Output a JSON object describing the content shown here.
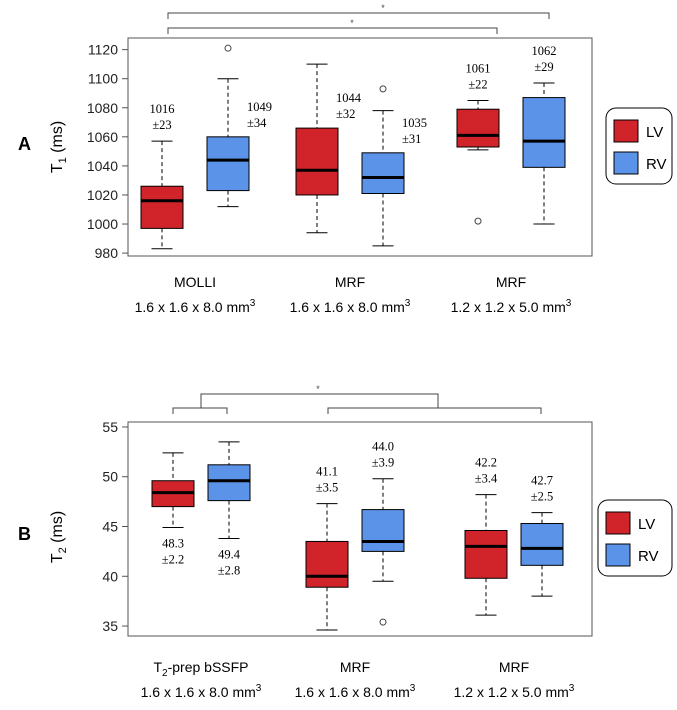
{
  "colors": {
    "LV": "#d0232a",
    "RV": "#5b93e8",
    "axis": "#555555",
    "median": "#000000"
  },
  "chart_data": [
    {
      "type": "box",
      "panel_label": "A",
      "ylabel_main": "T",
      "ylabel_sub": "1",
      "ylabel_unit": " (ms)",
      "ylim": [
        978,
        1128
      ],
      "yticks": [
        980,
        1000,
        1020,
        1040,
        1060,
        1080,
        1100,
        1120
      ],
      "legend": [
        {
          "key": "LV",
          "label": "LV"
        },
        {
          "key": "RV",
          "label": "RV"
        }
      ],
      "categories": [
        {
          "line1": "MOLLI",
          "line2": "1.6 x 1.6 x 8.0 mm",
          "sup": "3",
          "sup_prefix": ""
        },
        {
          "line1": "MRF",
          "line2": "1.6 x 1.6 x 8.0 mm",
          "sup": "3",
          "sup_prefix": ""
        },
        {
          "line1": "MRF",
          "line2": "1.2 x 1.2 x 5.0 mm",
          "sup": "3",
          "sup_prefix": ""
        }
      ],
      "series": [
        {
          "name": "LV",
          "boxes": [
            {
              "min": 983,
              "q1": 997,
              "median": 1016,
              "q3": 1026,
              "max": 1057,
              "outliers": [],
              "mean_label": "1016",
              "sd_label": "±23",
              "ann_pos": "above"
            },
            {
              "min": 994,
              "q1": 1020,
              "median": 1037,
              "q3": 1066,
              "max": 1110,
              "outliers": [],
              "mean_label": "1044",
              "sd_label": "±32",
              "ann_pos": "right"
            },
            {
              "min": 1051,
              "q1": 1053,
              "median": 1061,
              "q3": 1079,
              "max": 1085,
              "outliers": [
                1002
              ],
              "mean_label": "1061",
              "sd_label": "±22",
              "ann_pos": "above"
            }
          ]
        },
        {
          "name": "RV",
          "boxes": [
            {
              "min": 1012,
              "q1": 1023,
              "median": 1044,
              "q3": 1060,
              "max": 1100,
              "outliers": [
                1121
              ],
              "mean_label": "1049",
              "sd_label": "±34",
              "ann_pos": "right"
            },
            {
              "min": 985,
              "q1": 1021,
              "median": 1032,
              "q3": 1049,
              "max": 1078,
              "outliers": [
                1093
              ],
              "mean_label": "1035",
              "sd_label": "±31",
              "ann_pos": "right"
            },
            {
              "min": 1000,
              "q1": 1039,
              "median": 1057,
              "q3": 1087,
              "max": 1097,
              "outliers": [],
              "mean_label": "1062",
              "sd_label": "±29",
              "ann_pos": "above"
            }
          ]
        }
      ],
      "significance": [
        {
          "label": "*"
        },
        {
          "label": "*"
        }
      ]
    },
    {
      "type": "box",
      "panel_label": "B",
      "ylabel_main": "T",
      "ylabel_sub": "2",
      "ylabel_unit": " (ms)",
      "ylim": [
        34,
        55.5
      ],
      "yticks": [
        35,
        40,
        45,
        50,
        55
      ],
      "legend": [
        {
          "key": "LV",
          "label": "LV"
        },
        {
          "key": "RV",
          "label": "RV"
        }
      ],
      "categories": [
        {
          "line1": "T",
          "line1_sub": "2",
          "line1_rest": "-prep bSSFP",
          "line2": "1.6 x 1.6 x 8.0 mm",
          "sup": "3"
        },
        {
          "line1": "MRF",
          "line2": "1.6 x 1.6 x 8.0 mm",
          "sup": "3"
        },
        {
          "line1": "MRF",
          "line2": "1.2 x 1.2 x 5.0 mm",
          "sup": "3"
        }
      ],
      "series": [
        {
          "name": "LV",
          "boxes": [
            {
              "min": 44.9,
              "q1": 47.0,
              "median": 48.4,
              "q3": 49.6,
              "max": 52.4,
              "outliers": [],
              "mean_label": "48.3",
              "sd_label": "±2.2",
              "ann_pos": "below"
            },
            {
              "min": 34.6,
              "q1": 38.9,
              "median": 40.0,
              "q3": 43.5,
              "max": 47.3,
              "outliers": [],
              "mean_label": "41.1",
              "sd_label": "±3.5",
              "ann_pos": "above"
            },
            {
              "min": 36.1,
              "q1": 39.8,
              "median": 43.0,
              "q3": 44.6,
              "max": 48.2,
              "outliers": [],
              "mean_label": "42.2",
              "sd_label": "±3.4",
              "ann_pos": "above"
            }
          ]
        },
        {
          "name": "RV",
          "boxes": [
            {
              "min": 43.8,
              "q1": 47.6,
              "median": 49.6,
              "q3": 51.2,
              "max": 53.5,
              "outliers": [],
              "mean_label": "49.4",
              "sd_label": "±2.8",
              "ann_pos": "below"
            },
            {
              "min": 39.5,
              "q1": 42.5,
              "median": 43.5,
              "q3": 46.7,
              "max": 49.8,
              "outliers": [
                35.4
              ],
              "mean_label": "44.0",
              "sd_label": "±3.9",
              "ann_pos": "above"
            },
            {
              "min": 38.0,
              "q1": 41.1,
              "median": 42.8,
              "q3": 45.3,
              "max": 46.4,
              "outliers": [],
              "mean_label": "42.7",
              "sd_label": "±2.5",
              "ann_pos": "above"
            }
          ]
        }
      ],
      "significance": [
        {
          "label": "*"
        }
      ]
    }
  ]
}
